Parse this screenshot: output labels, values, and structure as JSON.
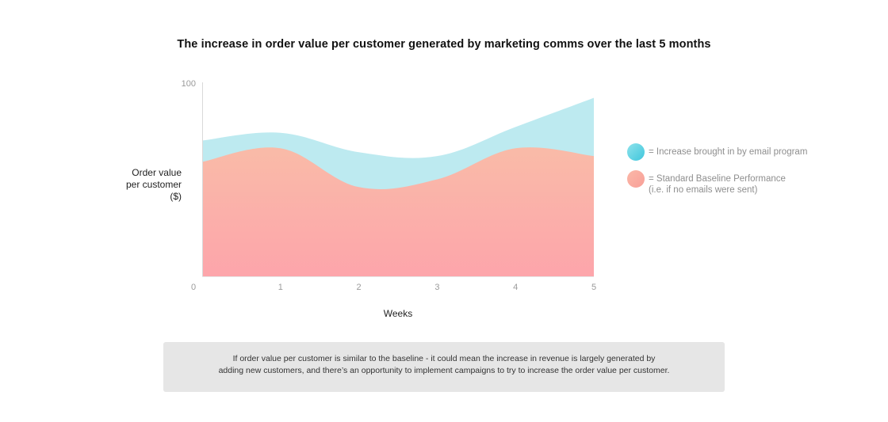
{
  "chart_data": {
    "type": "area",
    "title": "The increase in order value per customer generated by marketing comms over the last 5 months",
    "ylabel_lines": [
      "Order value",
      "per customer",
      "($)"
    ],
    "xlabel": "Weeks",
    "x": [
      0,
      1,
      2,
      3,
      4,
      5
    ],
    "x_tick_labels": [
      "0",
      "1",
      "2",
      "3",
      "4",
      "5"
    ],
    "y_tick_labels": [
      "0",
      "100"
    ],
    "ylim": [
      0,
      100
    ],
    "stacked": true,
    "series": [
      {
        "name": "= Standard Baseline Performance",
        "values": [
          59,
          66,
          46,
          50,
          66,
          62
        ],
        "color_top": "#f9bba8",
        "color_bottom": "#fda5ab"
      },
      {
        "name": "= Increase brought in by email program",
        "values": [
          11,
          8,
          18,
          12,
          11,
          30
        ],
        "color": "#bdeaf0"
      }
    ],
    "grid": false,
    "legend_position": "right"
  },
  "legend": [
    {
      "lines": [
        "= Increase brought in by email program"
      ],
      "color_top": "#8fe3ec",
      "color_bottom": "#3fc6dc"
    },
    {
      "lines": [
        "= Standard Baseline Performance",
        "(i.e. if no emails were sent)"
      ],
      "color_top": "#fbb8a8",
      "color_bottom": "#f89f98"
    }
  ],
  "note": {
    "lines": [
      "If order value per customer is similar to the baseline - it could mean the increase in revenue is largely generated by",
      "adding new customers, and there’s an opportunity to implement campaigns to try to increase the order value per customer."
    ]
  }
}
